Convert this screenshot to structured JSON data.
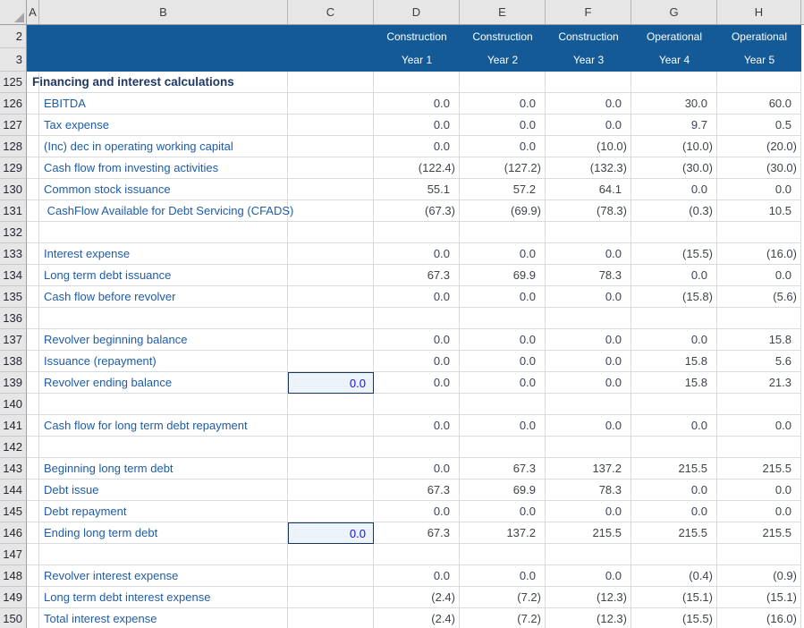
{
  "colors": {
    "header_fill": "#145A96",
    "header_text": "#FFFFFF",
    "col_header_bg": "#E6E6E6",
    "col_header_text": "#3D3D3D",
    "gridline": "#D8DBDE",
    "label_text": "#1F5CA8",
    "section_text": "#1F3864",
    "value_text": "#3E434D",
    "input_text": "#1010E8",
    "input_fill": "#EDF3FA",
    "input_border": "#16365C"
  },
  "column_headers": [
    "A",
    "B",
    "C",
    "D",
    "E",
    "F",
    "G",
    "H"
  ],
  "frozen_rows": [
    {
      "num": "2",
      "labels": [
        "Construction",
        "Construction",
        "Construction",
        "Operational",
        "Operational"
      ]
    },
    {
      "num": "3",
      "labels": [
        "Year 1",
        "Year 2",
        "Year 3",
        "Year 4",
        "Year 5"
      ]
    }
  ],
  "rows": [
    {
      "num": "125",
      "type": "section",
      "label": "Financing and interest calculations",
      "values": [
        "",
        "",
        "",
        "",
        ""
      ]
    },
    {
      "num": "126",
      "type": "label",
      "label": "EBITDA",
      "values": [
        "0.0",
        "0.0",
        "0.0",
        "30.0",
        "60.0"
      ]
    },
    {
      "num": "127",
      "type": "label",
      "label": "Tax expense",
      "values": [
        "0.0",
        "0.0",
        "0.0",
        "9.7",
        "0.5"
      ]
    },
    {
      "num": "128",
      "type": "label",
      "label": "(Inc) dec in operating working capital",
      "values": [
        "0.0",
        "0.0",
        "(10.0)",
        "(10.0)",
        "(20.0)"
      ]
    },
    {
      "num": "129",
      "type": "label",
      "label": "Cash flow from investing activities",
      "values": [
        "(122.4)",
        "(127.2)",
        "(132.3)",
        "(30.0)",
        "(30.0)"
      ]
    },
    {
      "num": "130",
      "type": "label",
      "label": "Common stock issuance",
      "values": [
        "55.1",
        "57.2",
        "64.1",
        "0.0",
        "0.0"
      ]
    },
    {
      "num": "131",
      "type": "label",
      "label": " CashFlow Available for Debt Servicing (CFADS)",
      "values": [
        "(67.3)",
        "(69.9)",
        "(78.3)",
        "(0.3)",
        "10.5"
      ]
    },
    {
      "num": "132",
      "type": "blank",
      "label": "",
      "values": [
        "",
        "",
        "",
        "",
        ""
      ]
    },
    {
      "num": "133",
      "type": "label",
      "label": "Interest expense",
      "values": [
        "0.0",
        "0.0",
        "0.0",
        "(15.5)",
        "(16.0)"
      ]
    },
    {
      "num": "134",
      "type": "label",
      "label": "Long term debt issuance",
      "values": [
        "67.3",
        "69.9",
        "78.3",
        "0.0",
        "0.0"
      ]
    },
    {
      "num": "135",
      "type": "label",
      "label": "Cash flow before revolver",
      "values": [
        "0.0",
        "0.0",
        "0.0",
        "(15.8)",
        "(5.6)"
      ]
    },
    {
      "num": "136",
      "type": "blank",
      "label": "",
      "values": [
        "",
        "",
        "",
        "",
        ""
      ]
    },
    {
      "num": "137",
      "type": "label",
      "label": "Revolver beginning balance",
      "values": [
        "0.0",
        "0.0",
        "0.0",
        "0.0",
        "15.8"
      ]
    },
    {
      "num": "138",
      "type": "label",
      "label": "Issuance (repayment)",
      "values": [
        "0.0",
        "0.0",
        "0.0",
        "15.8",
        "5.6"
      ]
    },
    {
      "num": "139",
      "type": "label",
      "label": "Revolver ending balance",
      "input": "0.0",
      "values": [
        "0.0",
        "0.0",
        "0.0",
        "15.8",
        "21.3"
      ]
    },
    {
      "num": "140",
      "type": "blank",
      "label": "",
      "values": [
        "",
        "",
        "",
        "",
        ""
      ]
    },
    {
      "num": "141",
      "type": "label",
      "label": "Cash flow for long term debt repayment",
      "values": [
        "0.0",
        "0.0",
        "0.0",
        "0.0",
        "0.0"
      ]
    },
    {
      "num": "142",
      "type": "blank",
      "label": "",
      "values": [
        "",
        "",
        "",
        "",
        ""
      ]
    },
    {
      "num": "143",
      "type": "label",
      "label": "Beginning long term debt",
      "values": [
        "0.0",
        "67.3",
        "137.2",
        "215.5",
        "215.5"
      ]
    },
    {
      "num": "144",
      "type": "label",
      "label": "Debt issue",
      "values": [
        "67.3",
        "69.9",
        "78.3",
        "0.0",
        "0.0"
      ]
    },
    {
      "num": "145",
      "type": "label",
      "label": "Debt repayment",
      "values": [
        "0.0",
        "0.0",
        "0.0",
        "0.0",
        "0.0"
      ]
    },
    {
      "num": "146",
      "type": "label",
      "label": "Ending long term debt",
      "input": "0.0",
      "values": [
        "67.3",
        "137.2",
        "215.5",
        "215.5",
        "215.5"
      ]
    },
    {
      "num": "147",
      "type": "blank",
      "label": "",
      "values": [
        "",
        "",
        "",
        "",
        ""
      ]
    },
    {
      "num": "148",
      "type": "label",
      "label": "Revolver interest expense",
      "values": [
        "0.0",
        "0.0",
        "0.0",
        "(0.4)",
        "(0.9)"
      ]
    },
    {
      "num": "149",
      "type": "label",
      "label": "Long term debt interest expense",
      "values": [
        "(2.4)",
        "(7.2)",
        "(12.3)",
        "(15.1)",
        "(15.1)"
      ]
    },
    {
      "num": "150",
      "type": "label",
      "label": "Total interest expense",
      "values": [
        "(2.4)",
        "(7.2)",
        "(12.3)",
        "(15.5)",
        "(16.0)"
      ]
    }
  ]
}
